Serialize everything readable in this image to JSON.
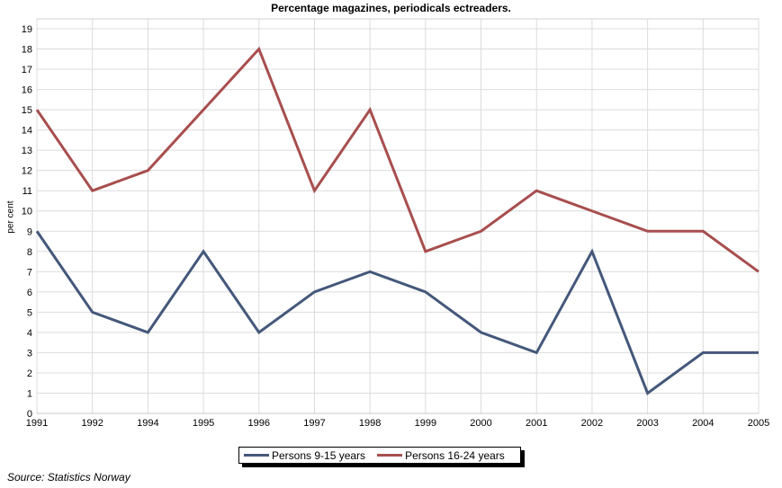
{
  "chart_data": {
    "type": "line",
    "title": "Percentage magazines, periodicals ectreaders.",
    "xlabel": "",
    "ylabel": "per cent",
    "categories": [
      "1991",
      "1992",
      "1994",
      "1995",
      "1996",
      "1997",
      "1998",
      "1999",
      "2000",
      "2001",
      "2002",
      "2003",
      "2004",
      "2005"
    ],
    "ylim": [
      0,
      19
    ],
    "yticks": [
      0,
      1,
      2,
      3,
      4,
      5,
      6,
      7,
      8,
      9,
      10,
      11,
      12,
      13,
      14,
      15,
      16,
      17,
      18,
      19
    ],
    "grid": true,
    "legend_placement": "bottom",
    "series": [
      {
        "name": "Persons 9-15 years",
        "color": "#44587a",
        "values": [
          9,
          5,
          4,
          8,
          4,
          6,
          7,
          6,
          4,
          3,
          8,
          1,
          3,
          3
        ]
      },
      {
        "name": "Persons 16-24 years",
        "color": "#a84e4e",
        "values": [
          15,
          11,
          12,
          15,
          18,
          11,
          15,
          8,
          9,
          11,
          10,
          9,
          9,
          7
        ]
      }
    ]
  },
  "source": "Source: Statistics Norway"
}
